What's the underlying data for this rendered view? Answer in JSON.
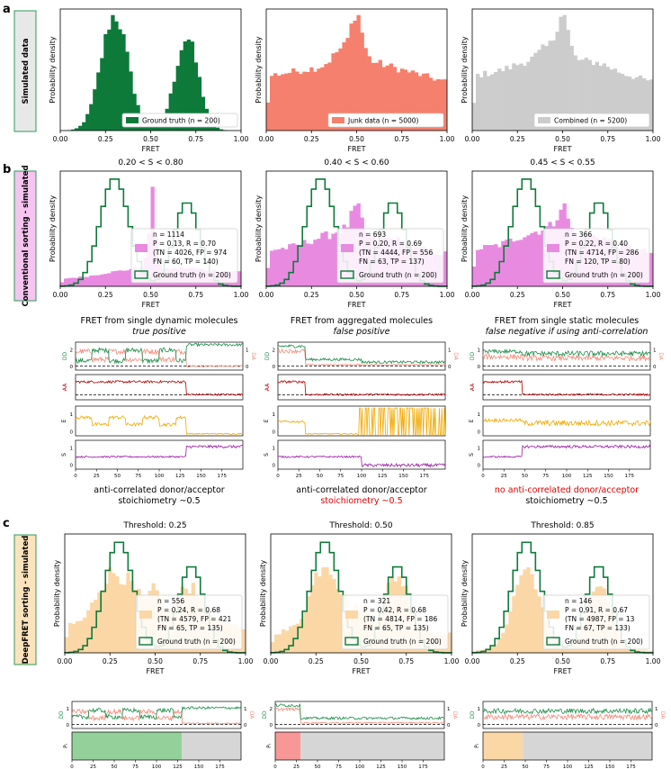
{
  "panel_letters": {
    "a": "a",
    "b": "b",
    "c": "c"
  },
  "row_labels": {
    "a": "Simulated data",
    "b": "Conventional sorting - simulated",
    "c": "DeepFRET sorting - simulated"
  },
  "colors": {
    "green": "#0e7a3a",
    "salmon": "#f4806d",
    "gray": "#cccccc",
    "pink": "#e88ae0",
    "peach": "#fbd7a6",
    "orange": "#f2a900",
    "purple": "#9b1ba5",
    "darkred": "#b30000",
    "red_text": "#e00000",
    "dd_green": "#1e8c4a",
    "da_salmon": "#f28b7a",
    "label_a_bg": "#e8e8e8",
    "label_b_bg": "#f5c4ef",
    "label_c_bg": "#fde3bd",
    "border_green": "#2c9a5a"
  },
  "chart_data": [
    {
      "type": "bar",
      "id": "a1",
      "fill": "green",
      "xlabel": "FRET",
      "ylabel": "Probability density",
      "xlim": [
        0,
        1
      ],
      "xticks": [
        "0.00",
        "0.25",
        "0.50",
        "0.75",
        "1.00"
      ],
      "profile": "ground_truth",
      "legend": [
        "Ground truth (n = 200)"
      ]
    },
    {
      "type": "bar",
      "id": "a2",
      "fill": "salmon",
      "xlabel": "FRET",
      "ylabel": "Probability density",
      "xlim": [
        0,
        1
      ],
      "xticks": [
        "0.00",
        "0.25",
        "0.50",
        "0.75",
        "1.00"
      ],
      "profile": "junk",
      "legend": [
        "Junk data (n = 5000)"
      ]
    },
    {
      "type": "bar",
      "id": "a3",
      "fill": "gray",
      "xlabel": "FRET",
      "ylabel": "Probability density",
      "xlim": [
        0,
        1
      ],
      "xticks": [
        "0.00",
        "0.25",
        "0.50",
        "0.75",
        "1.00"
      ],
      "profile": "combined",
      "legend": [
        "Combined (n = 5200)"
      ]
    },
    {
      "type": "bar",
      "id": "b1",
      "fill": "pink",
      "title": "0.20 < S < 0.80",
      "xlabel": "FRET",
      "ylabel": "Probability density",
      "xlim": [
        0,
        1
      ],
      "xticks": [
        "0.00",
        "0.25",
        "0.50",
        "0.75",
        "1.00"
      ],
      "profile": "conv_wide",
      "overlay": "ground_truth_step",
      "legend": [
        "n = 1114",
        "P = 0.13, R = 0.70",
        "(TN = 4026, FP = 974",
        "FN = 60, TP = 140)",
        "Ground truth (n = 200)"
      ]
    },
    {
      "type": "bar",
      "id": "b2",
      "fill": "pink",
      "title": "0.40 < S < 0.60",
      "xlabel": "FRET",
      "ylabel": "Probability density",
      "xlim": [
        0,
        1
      ],
      "xticks": [
        "0.00",
        "0.25",
        "0.50",
        "0.75",
        "1.00"
      ],
      "profile": "conv_mid",
      "overlay": "ground_truth_step",
      "legend": [
        "n = 693",
        "P = 0.20, R = 0.69",
        "(TN = 4444, FP = 556",
        "FN = 63, TP = 137)",
        "Ground truth (n = 200)"
      ]
    },
    {
      "type": "bar",
      "id": "b3",
      "fill": "pink",
      "title": "0.45 < S < 0.55",
      "xlabel": "FRET",
      "ylabel": "Probability density",
      "xlim": [
        0,
        1
      ],
      "xticks": [
        "0.00",
        "0.25",
        "0.50",
        "0.75",
        "1.00"
      ],
      "profile": "conv_narrow",
      "overlay": "ground_truth_step",
      "legend": [
        "n = 366",
        "P = 0.22, R = 0.40",
        "(TN = 4714, FP = 286",
        "FN = 120, TP = 80)",
        "Ground truth (n = 200)"
      ]
    },
    {
      "type": "bar",
      "id": "c1",
      "fill": "peach",
      "title": "Threshold: 0.25",
      "xlabel": "FRET",
      "ylabel": "Probability density",
      "xlim": [
        0,
        1
      ],
      "xticks": [
        "0.00",
        "0.25",
        "0.50",
        "0.75",
        "1.00"
      ],
      "profile": "deep_025",
      "overlay": "ground_truth_step",
      "legend": [
        "n = 556",
        "P = 0.24, R = 0.68",
        "(TN = 4579, FP = 421",
        "FN = 65, TP = 135)",
        "Ground truth (n = 200)"
      ]
    },
    {
      "type": "bar",
      "id": "c2",
      "fill": "peach",
      "title": "Threshold: 0.50",
      "xlabel": "FRET",
      "ylabel": "Probability density",
      "xlim": [
        0,
        1
      ],
      "xticks": [
        "0.00",
        "0.25",
        "0.50",
        "0.75",
        "1.00"
      ],
      "profile": "deep_050",
      "overlay": "ground_truth_step",
      "legend": [
        "n = 321",
        "P = 0.42, R = 0.68",
        "(TN = 4814, FP = 186",
        "FN = 65, TP = 135)",
        "Ground truth (n = 200)"
      ]
    },
    {
      "type": "bar",
      "id": "c3",
      "fill": "peach",
      "title": "Threshold: 0.85",
      "xlabel": "FRET",
      "ylabel": "Probability density",
      "xlim": [
        0,
        1
      ],
      "xticks": [
        "0.00",
        "0.25",
        "0.50",
        "0.75",
        "1.00"
      ],
      "profile": "deep_085",
      "overlay": "ground_truth_step",
      "legend": [
        "n = 146",
        "P = 0.91, R = 0.67",
        "(TN = 4987, FP = 13",
        "FN = 67, TP = 133)",
        "Ground truth (n = 200)"
      ]
    },
    {
      "type": "line",
      "id": "traces",
      "x_range": [
        0,
        200
      ],
      "xticks": [
        "0",
        "25",
        "50",
        "75",
        "100",
        "125",
        "150",
        "175"
      ],
      "ylabels": {
        "dd": "DD",
        "da": "DA",
        "aa": "AA",
        "e": "E",
        "s": "S",
        "p": "Pᵢ"
      },
      "columns": [
        {
          "title": "FRET from single dynamic molecules",
          "subtitle": "true positive",
          "bleach_time": 132,
          "caption_line1": "anti-correlated donor/acceptor",
          "caption_line2": "stoichiometry ~0.5",
          "caption_line1_red": false,
          "caption_line2_red": false,
          "dd_ticks": [
            "2",
            "0"
          ],
          "da_ticks": [
            "1",
            "0"
          ],
          "e_ticks": [
            "1",
            "0"
          ],
          "s_ticks": [
            "1",
            "0"
          ]
        },
        {
          "title": "FRET from aggregated molecules",
          "subtitle": "false positive",
          "bleach_time": 33,
          "caption_line1": "anti-correlated donor/acceptor",
          "caption_line2": "stoichiometry ~0.5",
          "caption_line1_red": false,
          "caption_line2_red": true,
          "dd_ticks": [
            "2",
            "0"
          ],
          "da_ticks": [
            "1",
            "0"
          ],
          "e_ticks": [
            "1",
            "0"
          ],
          "s_ticks": [
            "1",
            "0"
          ]
        },
        {
          "title": "FRET from single static molecules",
          "subtitle": "false negative if using anti-correlation",
          "bleach_time": 47,
          "caption_line1": "no anti-correlated donor/acceptor",
          "caption_line2": "stoichiometry ~0.5",
          "caption_line1_red": true,
          "caption_line2_red": false,
          "dd_ticks": [
            "1",
            "0"
          ],
          "da_ticks": [
            "1",
            "0"
          ],
          "e_ticks": [
            "1",
            "0"
          ],
          "s_ticks": [
            "1",
            "0"
          ]
        }
      ],
      "deep_columns": [
        {
          "bleach_time": 130,
          "p_fill": "#94d19a",
          "dd_ticks": [
            "1",
            "0"
          ],
          "da_ticks": [
            "1",
            "0"
          ]
        },
        {
          "bleach_time": 30,
          "p_fill": "#f79896",
          "dd_ticks": [
            "2",
            "0"
          ],
          "da_ticks": [
            "1",
            "0"
          ]
        },
        {
          "bleach_time": 47,
          "p_fill": "#fbd7a6",
          "dd_ticks": [
            "1",
            "0"
          ],
          "da_ticks": [
            "1",
            "0"
          ]
        }
      ]
    }
  ]
}
